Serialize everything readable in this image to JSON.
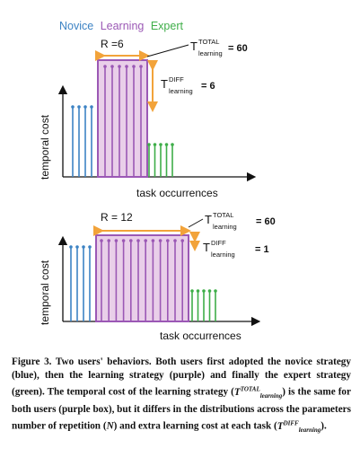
{
  "legend": {
    "novice": "Novice",
    "learning": "Learning",
    "expert": "Expert",
    "colors": {
      "novice": "#3d83c4",
      "learning": "#9b58b5",
      "expert": "#3fae49",
      "arrow": "#f2a33a"
    }
  },
  "axes": {
    "ylabel": "temporal cost",
    "xlabel": "task occurrences"
  },
  "panel1": {
    "r_label": "R =6",
    "t_total": {
      "symbol": "T",
      "sup": "TOTAL",
      "sub": "learning",
      "value": "= 60"
    },
    "t_diff": {
      "symbol": "T",
      "sup": "DIFF",
      "sub": "learning",
      "value": "= 6"
    },
    "counts": {
      "novice": 4,
      "learning": 6,
      "expert": 5
    }
  },
  "panel2": {
    "r_label": "R = 12",
    "t_total": {
      "symbol": "T",
      "sup": "TOTAL",
      "sub": "learning",
      "value": "= 60"
    },
    "t_diff": {
      "symbol": "T",
      "sup": "DIFF",
      "sub": "learning",
      "value": "= 1"
    },
    "counts": {
      "novice": 4,
      "learning": 12,
      "expert": 5
    }
  },
  "caption": {
    "figure": "Figure 3.",
    "text1": "Two users' behaviors. Both users first adopted the novice strategy (blue), then the learning strategy (purple) and finally the expert strategy (green). The temporal cost of the learning strategy (",
    "text2": ") is the same for both users (purple box), but it differs in the distributions across the parameters number of repetition (",
    "n": "N",
    "text3": ") and extra learning cost at each task (",
    "text4": ").",
    "t_symbol": "T",
    "total_sup": "TOTAL",
    "diff_sup": "DIFF",
    "learning_sub": "learning"
  }
}
